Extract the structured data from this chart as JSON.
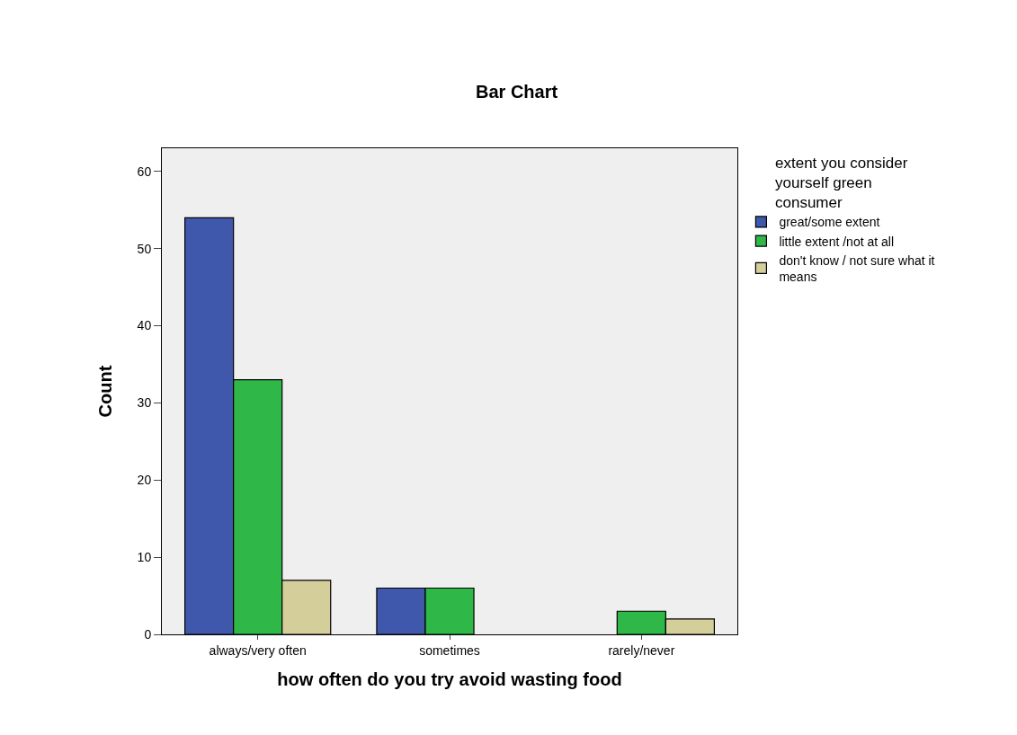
{
  "chart_data": {
    "type": "bar",
    "title": "Bar Chart",
    "xlabel": "how often do you try avoid wasting food",
    "ylabel": "Count",
    "legend_title": "extent you consider yourself green consumer",
    "categories": [
      "always/very often",
      "sometimes",
      "rarely/never"
    ],
    "series": [
      {
        "name": "great/some extent",
        "color": "#3f58ab",
        "values": [
          54,
          6,
          null
        ]
      },
      {
        "name": "little extent /not at all",
        "color": "#2fb847",
        "values": [
          33,
          6,
          3
        ]
      },
      {
        "name": "don't know / not sure what it means",
        "color": "#d4cf9a",
        "values": [
          7,
          null,
          2
        ]
      }
    ],
    "ylim": [
      0,
      63
    ],
    "yticks": [
      0,
      10,
      20,
      30,
      40,
      50,
      60
    ],
    "grid": false,
    "legend": "right"
  }
}
